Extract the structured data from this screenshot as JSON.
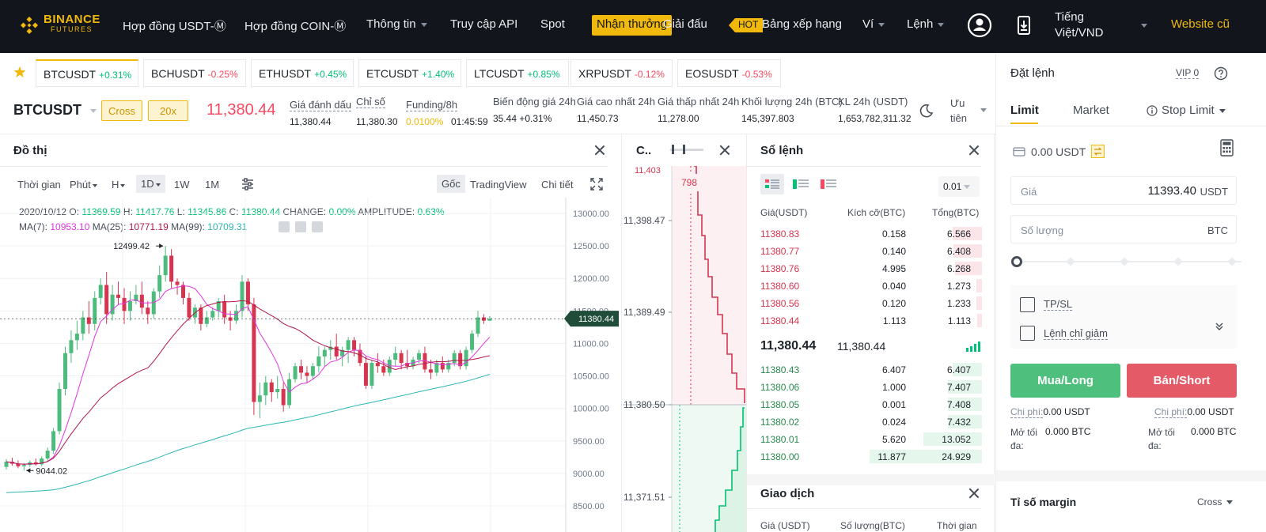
{
  "brand": {
    "name": "BINANCE",
    "sub": "FUTURES"
  },
  "nav": {
    "items": [
      "Hợp đồng USDT-Ⓜ",
      "Hợp đồng COIN-Ⓜ",
      "Thông tin",
      "Truy cập API",
      "Spot"
    ],
    "reward": "Nhận thưởng",
    "tournament": "Giải đấu",
    "hot": "HOT",
    "leaderboard": "Bảng xếp hạng",
    "wallet": "Ví",
    "orders": "Lệnh",
    "language_line1": "Tiếng",
    "language_line2": "Việt/VND",
    "website": "Website cũ"
  },
  "tickers": [
    {
      "symbol": "BTCUSDT",
      "change": "+0.31%",
      "dir": "pos"
    },
    {
      "symbol": "BCHUSDT",
      "change": "-0.25%",
      "dir": "neg"
    },
    {
      "symbol": "ETHUSDT",
      "change": "+0.45%",
      "dir": "pos"
    },
    {
      "symbol": "ETCUSDT",
      "change": "+1.40%",
      "dir": "pos"
    },
    {
      "symbol": "LTCUSDT",
      "change": "+0.85%",
      "dir": "pos"
    },
    {
      "symbol": "XRPUSDT",
      "change": "-0.12%",
      "dir": "neg"
    },
    {
      "symbol": "EOSUSDT",
      "change": "-0.53%",
      "dir": "neg"
    }
  ],
  "info": {
    "symbol": "BTCUSDT",
    "margin_mode": "Cross",
    "leverage": "20x",
    "last_price": "11,380.44",
    "mark_label": "Giá đánh dấu",
    "mark_value": "11,380.44",
    "index_label": "Chỉ số",
    "index_value": "11,380.30",
    "funding_label": "Funding/8h",
    "funding_value": "0.0100%",
    "funding_countdown": "01:45:59",
    "change_label": "Biến động giá 24h",
    "change_value": "35.44 +0.31%",
    "high_label": "Giá cao nhất 24h",
    "high_value": "11,450.73",
    "low_label": "Giá thấp nhất 24h",
    "low_value": "11,278.00",
    "vol_btc_label": "Khối lượng 24h (BTC)",
    "vol_btc_value": "145,397.803",
    "vol_usdt_label": "KL 24h (USDT)",
    "vol_usdt_value": "1,653,782,311.32",
    "priority_line1": "Ưu",
    "priority_line2": "tiên"
  },
  "chart": {
    "title": "Đồ thị",
    "toolbar": {
      "time": "Thời gian",
      "minute": "Phút",
      "hour": "H",
      "day": "1D",
      "week": "1W",
      "month": "1M",
      "original": "Gốc",
      "tradingview": "TradingView",
      "detail": "Chi tiết"
    },
    "ohlc_line": "2020/10/12",
    "ohlc": {
      "o": "11369.59",
      "h": "11417.76",
      "l": "11345.86",
      "c": "11380.44",
      "change": "0.00%",
      "amplitude": "0.63%"
    },
    "ma": {
      "ma7": "10953.10",
      "ma25": "10771.19",
      "ma99": "10709.31"
    },
    "high_marker": "12499.42",
    "low_marker": "9044.02",
    "last_price_tag": "11380.44",
    "y_ticks": [
      "13000.00",
      "12500.00",
      "12000.00",
      "11500.00",
      "11000.00",
      "10500.00",
      "10000.00",
      "9500.00",
      "9000.00",
      "8500.00"
    ]
  },
  "chart_data": {
    "type": "candlestick",
    "ylim": [
      8300,
      13200
    ],
    "candles": [
      [
        9100,
        9220,
        9060,
        9180
      ],
      [
        9180,
        9240,
        9120,
        9150
      ],
      [
        9150,
        9200,
        9080,
        9110
      ],
      [
        9110,
        9160,
        9044,
        9130
      ],
      [
        9130,
        9200,
        9100,
        9170
      ],
      [
        9170,
        9230,
        9120,
        9140
      ],
      [
        9140,
        9260,
        9110,
        9230
      ],
      [
        9230,
        9400,
        9180,
        9350
      ],
      [
        9350,
        9700,
        9300,
        9650
      ],
      [
        9650,
        10400,
        9600,
        10300
      ],
      [
        10300,
        10950,
        10200,
        10850
      ],
      [
        10850,
        11200,
        10700,
        11050
      ],
      [
        11050,
        11350,
        10900,
        11150
      ],
      [
        11150,
        11500,
        11050,
        11400
      ],
      [
        11400,
        11650,
        11150,
        11300
      ],
      [
        11300,
        11800,
        11200,
        11700
      ],
      [
        11700,
        12000,
        11600,
        11900
      ],
      [
        11900,
        12100,
        11300,
        11450
      ],
      [
        11450,
        11900,
        11350,
        11750
      ],
      [
        11750,
        11950,
        11600,
        11700
      ],
      [
        11700,
        11850,
        11300,
        11500
      ],
      [
        11500,
        11800,
        11350,
        11650
      ],
      [
        11650,
        11900,
        11600,
        11750
      ],
      [
        11750,
        11950,
        11450,
        11550
      ],
      [
        11550,
        11650,
        11300,
        11450
      ],
      [
        11450,
        11850,
        11380,
        11800
      ],
      [
        11800,
        12200,
        11700,
        12050
      ],
      [
        12050,
        12499,
        11950,
        12350
      ],
      [
        12350,
        12450,
        11850,
        11950
      ],
      [
        11950,
        12000,
        11750,
        11900
      ],
      [
        11900,
        11950,
        11600,
        11700
      ],
      [
        11700,
        11780,
        11350,
        11400
      ],
      [
        11400,
        11600,
        11300,
        11550
      ],
      [
        11550,
        11600,
        11200,
        11300
      ],
      [
        11300,
        11500,
        11250,
        11400
      ],
      [
        11400,
        11550,
        11350,
        11500
      ],
      [
        11500,
        11700,
        11400,
        11650
      ],
      [
        11650,
        11750,
        11300,
        11400
      ],
      [
        11400,
        11500,
        11200,
        11350
      ],
      [
        11350,
        11600,
        11300,
        11500
      ],
      [
        11500,
        12050,
        11400,
        11950
      ],
      [
        11950,
        12000,
        11500,
        11600
      ],
      [
        11600,
        11700,
        9900,
        10100
      ],
      [
        10100,
        10400,
        9850,
        10200
      ],
      [
        10200,
        10500,
        10050,
        10400
      ],
      [
        10400,
        10450,
        10100,
        10250
      ],
      [
        10250,
        10500,
        10150,
        10300
      ],
      [
        10300,
        10400,
        9950,
        10050
      ],
      [
        10050,
        10550,
        10000,
        10450
      ],
      [
        10450,
        10700,
        10400,
        10650
      ],
      [
        10650,
        10750,
        10450,
        10550
      ],
      [
        10550,
        10650,
        10400,
        10500
      ],
      [
        10500,
        10700,
        10450,
        10650
      ],
      [
        10650,
        10950,
        10550,
        10800
      ],
      [
        10800,
        10950,
        10650,
        10900
      ],
      [
        10900,
        11050,
        10750,
        10950
      ],
      [
        10950,
        11150,
        10750,
        10800
      ],
      [
        10800,
        10950,
        10650,
        10900
      ],
      [
        10900,
        11100,
        10700,
        11050
      ],
      [
        11050,
        11100,
        10800,
        10900
      ],
      [
        10900,
        11000,
        10650,
        10700
      ],
      [
        10700,
        10800,
        10300,
        10350
      ],
      [
        10350,
        10750,
        10300,
        10700
      ],
      [
        10700,
        10850,
        10550,
        10650
      ],
      [
        10650,
        10750,
        10500,
        10550
      ],
      [
        10550,
        10800,
        10500,
        10750
      ],
      [
        10750,
        10950,
        10650,
        10850
      ],
      [
        10850,
        10900,
        10600,
        10700
      ],
      [
        10700,
        10900,
        10600,
        10650
      ],
      [
        10650,
        10800,
        10600,
        10750
      ],
      [
        10750,
        10900,
        10700,
        10850
      ],
      [
        10850,
        10950,
        10550,
        10600
      ],
      [
        10600,
        10750,
        10450,
        10550
      ],
      [
        10550,
        10750,
        10500,
        10700
      ],
      [
        10700,
        10800,
        10550,
        10600
      ],
      [
        10600,
        10750,
        10550,
        10700
      ],
      [
        10700,
        10900,
        10650,
        10850
      ],
      [
        10850,
        10900,
        10600,
        10650
      ],
      [
        10650,
        10950,
        10600,
        10900
      ],
      [
        10900,
        11200,
        10850,
        11150
      ],
      [
        11150,
        11500,
        11100,
        11400
      ],
      [
        11400,
        11450,
        11300,
        11350
      ],
      [
        11350,
        11420,
        11345,
        11380
      ]
    ]
  },
  "depth": {
    "title": "C..",
    "bubble": "798",
    "top_cut": "11,403",
    "prices": [
      "11,398.47",
      "11,389.49",
      "11,380.50",
      "11,371.51"
    ]
  },
  "orderbook": {
    "title": "Sổ lệnh",
    "precision": "0.01",
    "headers": [
      "Giá(USDT)",
      "Kích cỡ(BTC)",
      "Tổng(BTC)"
    ],
    "asks": [
      {
        "price": "11380.83",
        "size": "0.158",
        "total": "6.566",
        "depth": 0.26
      },
      {
        "price": "11380.77",
        "size": "0.140",
        "total": "6.408",
        "depth": 0.25
      },
      {
        "price": "11380.76",
        "size": "4.995",
        "total": "6.268",
        "depth": 0.24
      },
      {
        "price": "11380.60",
        "size": "0.040",
        "total": "1.273",
        "depth": 0.05
      },
      {
        "price": "11380.56",
        "size": "0.120",
        "total": "1.233",
        "depth": 0.05
      },
      {
        "price": "11380.44",
        "size": "1.113",
        "total": "1.113",
        "depth": 0.04
      }
    ],
    "mid_last": "11,380.44",
    "mid_mark": "11,380.44",
    "bids": [
      {
        "price": "11380.43",
        "size": "6.407",
        "total": "6.407",
        "depth": 0.26
      },
      {
        "price": "11380.06",
        "size": "1.000",
        "total": "7.407",
        "depth": 0.3
      },
      {
        "price": "11380.05",
        "size": "0.001",
        "total": "7.408",
        "depth": 0.3
      },
      {
        "price": "11380.02",
        "size": "0.024",
        "total": "7.432",
        "depth": 0.3
      },
      {
        "price": "11380.01",
        "size": "5.620",
        "total": "13.052",
        "depth": 0.52
      },
      {
        "price": "11380.00",
        "size": "11.877",
        "total": "24.929",
        "depth": 1.0
      }
    ],
    "trades_title": "Giao dịch",
    "trades_headers": [
      "Giá (USDT)",
      "Số lượng(BTC)",
      "Thời gian"
    ]
  },
  "order_form": {
    "title": "Đặt lệnh",
    "vip": "VIP 0",
    "tabs": [
      "Limit",
      "Market",
      "Stop Limit"
    ],
    "balance": "0.00 USDT",
    "price_placeholder": "Giá",
    "price_value": "11393.40",
    "price_unit": "USDT",
    "qty_placeholder": "Số lượng",
    "qty_unit": "BTC",
    "tpsl": "TP/SL",
    "reduce_only": "Lệnh chỉ giảm",
    "buy": "Mua/Long",
    "sell": "Bán/Short",
    "fee_label": "Chi phí:",
    "fee_buy": "0.00 USDT",
    "fee_sell": "0.00 USDT",
    "max_label_1": "Mở tối",
    "max_label_2": "đa:",
    "max_buy": "0.000 BTC",
    "max_sell": "0.000 BTC",
    "margin_title": "Tỉ số margin",
    "margin_mode": "Cross"
  },
  "colors": {
    "up": "#02c076",
    "down": "#f84960",
    "accent": "#f0b90b",
    "candle_up": "#4dbb7c",
    "candle_down": "#d7354f",
    "ma7": "#e036e0",
    "ma25": "#b0184a",
    "ma99": "#2cb6b1"
  }
}
